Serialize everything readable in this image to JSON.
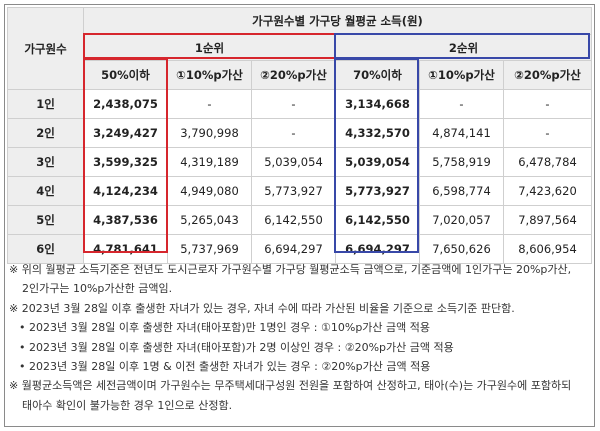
{
  "table": {
    "title": "가구원수별 가구당 월평균 소득(원)",
    "row_header": "가구원수",
    "rank1": "1순위",
    "rank2": "2순위",
    "columns": [
      "50%이하",
      "①10%p가산",
      "②20%p가산",
      "70%이하",
      "①10%p가산",
      "②20%p가산"
    ],
    "rows": [
      {
        "label": "1인",
        "cells": [
          "2,438,075",
          "-",
          "-",
          "3,134,668",
          "-",
          "-"
        ]
      },
      {
        "label": "2인",
        "cells": [
          "3,249,427",
          "3,790,998",
          "-",
          "4,332,570",
          "4,874,141",
          "-"
        ]
      },
      {
        "label": "3인",
        "cells": [
          "3,599,325",
          "4,319,189",
          "5,039,054",
          "5,039,054",
          "5,758,919",
          "6,478,784"
        ]
      },
      {
        "label": "4인",
        "cells": [
          "4,124,234",
          "4,949,080",
          "5,773,927",
          "5,773,927",
          "6,598,774",
          "7,423,620"
        ]
      },
      {
        "label": "5인",
        "cells": [
          "4,387,536",
          "5,265,043",
          "6,142,550",
          "6,142,550",
          "7,020,057",
          "7,897,564"
        ]
      },
      {
        "label": "6인",
        "cells": [
          "4,781,641",
          "5,737,969",
          "6,694,297",
          "6,694,297",
          "7,650,626",
          "8,606,954"
        ]
      }
    ]
  },
  "colors": {
    "rank1_outline": "#d6262d",
    "rank2_outline": "#3848a8"
  },
  "notes": {
    "n1a": "※ 위의 월평균 소득기준은 전년도 도시근로자 가구원수별 가구당 월평균소득 금액으로, 기준금액에 1인가구는 20%p가산,",
    "n1b": "2인가구는 10%p가산한 금액임.",
    "n2": "※ 2023년 3월 28일 이후 출생한 자녀가 있는 경우, 자녀 수에 따라 가산된 비율을 기준으로 소득기준 판단함.",
    "b1": "• 2023년 3월 28일 이후 출생한 자녀(태아포함)만 1명인 경우 : ①10%p가산 금액 적용",
    "b2": "• 2023년 3월 28일 이후 출생한 자녀(태아포함)가 2명 이상인 경우 : ②20%p가산 금액 적용",
    "b3": "• 2023년 3월 28일 이후 1명 & 이전 출생한 자녀가 있는 경우 : ②20%p가산 금액 적용",
    "n3a": "※ 월평균소득액은 세전금액이며 가구원수는 무주택세대구성원 전원을 포함하여 산정하고, 태아(수)는 가구원수에 포함하되",
    "n3b": "태아수 확인이 불가능한 경우 1인으로 산정함."
  }
}
